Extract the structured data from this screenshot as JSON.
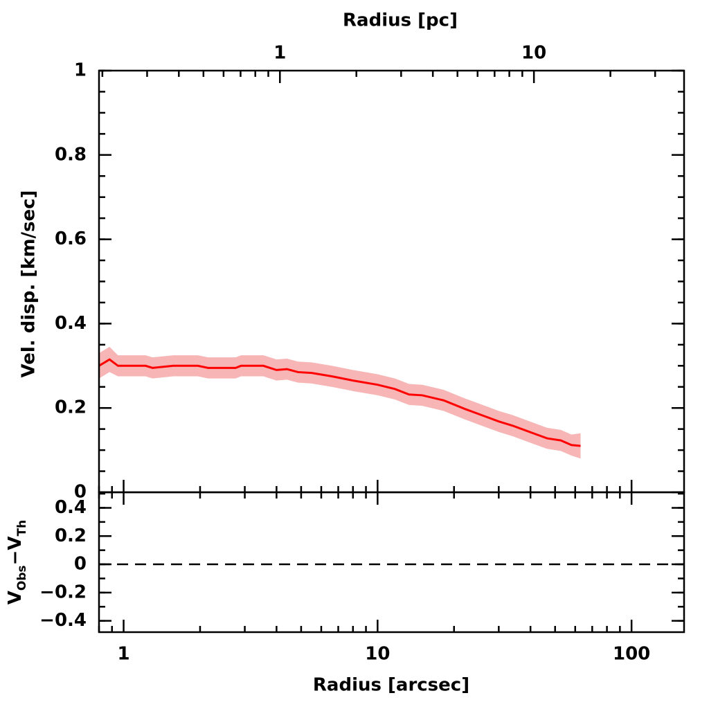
{
  "chart_data": [
    {
      "type": "line",
      "y_label": "Vel. disp. [km/sec]",
      "x2_label": "Radius [pc]",
      "xscale": "log",
      "xlim": [
        0.8,
        161
      ],
      "x2lim": [
        0.194,
        39
      ],
      "x2ticks": [
        1,
        10
      ],
      "ylim": [
        0,
        1
      ],
      "yticks": [
        0,
        0.2,
        0.4,
        0.6,
        0.8,
        1
      ],
      "yminor": 0.05,
      "minor_ticks": true,
      "series": [
        {
          "color": "#ff0000",
          "band_color": "#f7b5b5",
          "x": [
            0.8,
            0.88,
            0.95,
            1.22,
            1.3,
            1.57,
            1.96,
            2.15,
            2.76,
            2.9,
            3.55,
            4.0,
            4.4,
            4.86,
            5.5,
            6.6,
            8.0,
            10,
            11.7,
            13.3,
            15,
            18.2,
            22,
            26.5,
            30,
            34,
            41,
            46.5,
            52.7,
            58,
            63
          ],
          "values": [
            0.3,
            0.315,
            0.3,
            0.3,
            0.295,
            0.3,
            0.3,
            0.295,
            0.295,
            0.3,
            0.3,
            0.29,
            0.292,
            0.285,
            0.283,
            0.275,
            0.265,
            0.255,
            0.245,
            0.232,
            0.23,
            0.218,
            0.198,
            0.18,
            0.168,
            0.158,
            0.14,
            0.128,
            0.123,
            0.112,
            0.11
          ],
          "errors": [
            0.03,
            0.03,
            0.025,
            0.025,
            0.025,
            0.025,
            0.025,
            0.025,
            0.025,
            0.025,
            0.025,
            0.025,
            0.025,
            0.025,
            0.025,
            0.025,
            0.025,
            0.025,
            0.025,
            0.025,
            0.025,
            0.025,
            0.025,
            0.025,
            0.025,
            0.025,
            0.025,
            0.025,
            0.025,
            0.025,
            0.03
          ]
        }
      ]
    },
    {
      "type": "residual",
      "x_label": "Radius [arcsec]",
      "y_label_parts": [
        "V",
        "Obs",
        "−V",
        "Th"
      ],
      "xscale": "log",
      "xlim": [
        0.8,
        161
      ],
      "xticks": [
        1,
        10,
        100
      ],
      "ylim": [
        -0.48,
        0.51
      ],
      "yticks": [
        {
          "value": -0.4,
          "label": "−0.4"
        },
        {
          "value": -0.2,
          "label": "−0.2"
        },
        0,
        0.2,
        0.4
      ],
      "yminor": 0.1,
      "minor_ticks": true,
      "hline": 0
    }
  ]
}
